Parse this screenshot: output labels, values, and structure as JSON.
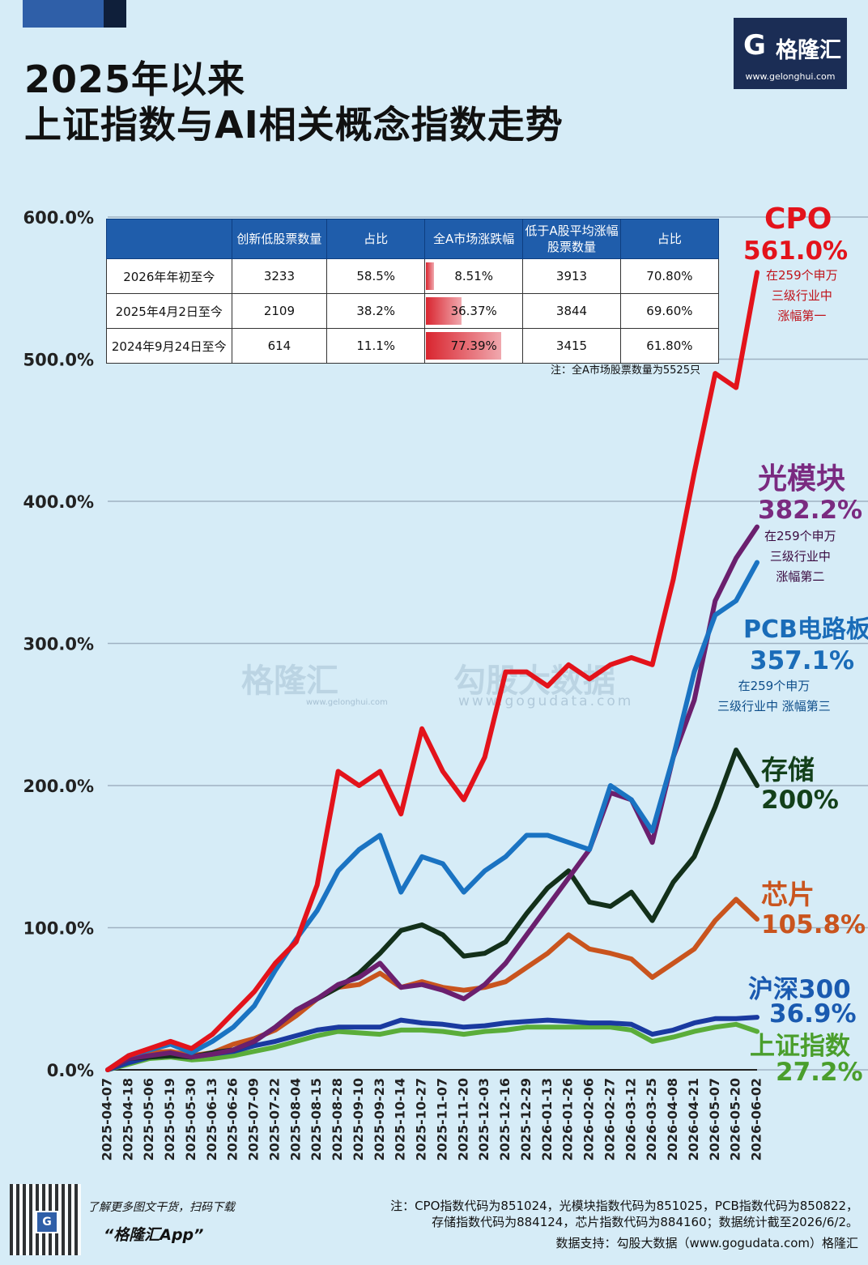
{
  "title": {
    "line1": "2025年以来",
    "line2": "上证指数与AI相关概念指数走势"
  },
  "logo": {
    "mark": "G",
    "name": "格隆汇",
    "url": "www.gelonghui.com"
  },
  "watermark": {
    "brand": "格隆汇",
    "brand_url": "www.gelonghui.com",
    "partner": "勾股大数据",
    "partner_url": "www.gogudata.com"
  },
  "table": {
    "headers": [
      "",
      "创新低股票数量",
      "占比",
      "全A市场涨跌幅",
      "低于A股平均涨幅股票数量",
      "占比"
    ],
    "rows": [
      {
        "period": "2026年年初至今",
        "new_low": "3233",
        "ratio": "58.5%",
        "change": "8.51%",
        "change_value": 8.51,
        "below_avg": "3913",
        "below_ratio": "70.80%"
      },
      {
        "period": "2025年4月2日至今",
        "new_low": "2109",
        "ratio": "38.2%",
        "change": "36.37%",
        "change_value": 36.37,
        "below_avg": "3844",
        "below_ratio": "69.60%"
      },
      {
        "period": "2024年9月24日至今",
        "new_low": "614",
        "ratio": "11.1%",
        "change": "77.39%",
        "change_value": 77.39,
        "below_avg": "3415",
        "below_ratio": "61.80%"
      }
    ],
    "note": "注：全A市场股票数量为5525只"
  },
  "labels": {
    "cpo": {
      "name": "CPO",
      "value": "561.0%",
      "sub": [
        "在259个申万",
        "三级行业中",
        "涨幅第一"
      ]
    },
    "optical": {
      "name": "光模块",
      "value": "382.2%",
      "sub": [
        "在259个申万",
        "三级行业中",
        "涨幅第二"
      ]
    },
    "pcb": {
      "name": "PCB电路板",
      "value": "357.1%",
      "sub": [
        "在259个申万",
        "三级行业中 涨幅第三"
      ]
    },
    "storage": {
      "name": "存储",
      "value": "200%"
    },
    "chip": {
      "name": "芯片",
      "value": "105.8%"
    },
    "hs300": {
      "name": "沪深300",
      "value": "36.9%"
    },
    "sh": {
      "name": "上证指数",
      "value": "27.2%"
    }
  },
  "footer": {
    "promo1": "了解更多图文干货，扫码下载",
    "promo2": "“格隆汇App”",
    "note1": "注：CPO指数代码为851024，光模块指数代码为851025，PCB指数代码为850822，",
    "note2": "存储指数代码为884124，芯片指数代码为884160；数据统计截至2026/6/2。",
    "source": "数据支持：勾股大数据（www.gogudata.com）格隆汇"
  },
  "colors": {
    "cpo": "#e3131b",
    "optical": "#6b1f6e",
    "pcb": "#1a73c2",
    "storage": "#13301a",
    "chip": "#c9541e",
    "hs300": "#1a3aa0",
    "sh": "#5aad3a",
    "header": "#1f5dab"
  },
  "chart_data": {
    "type": "line",
    "ylim": [
      0,
      600
    ],
    "yticks": [
      "600.0%",
      "500.0%",
      "400.0%",
      "300.0%",
      "200.0%",
      "100.0%",
      "0.0%"
    ],
    "ytick_values": [
      600,
      500,
      400,
      300,
      200,
      100,
      0
    ],
    "x": [
      "2025-04-07",
      "2025-04-18",
      "2025-05-06",
      "2025-05-19",
      "2025-05-30",
      "2025-06-13",
      "2025-06-26",
      "2025-07-09",
      "2025-07-22",
      "2025-08-04",
      "2025-08-15",
      "2025-08-28",
      "2025-09-10",
      "2025-09-23",
      "2025-10-14",
      "2025-10-27",
      "2025-11-07",
      "2025-11-20",
      "2025-12-03",
      "2025-12-16",
      "2025-12-29",
      "2026-01-13",
      "2026-01-26",
      "2026-02-06",
      "2026-02-27",
      "2026-03-12",
      "2026-03-25",
      "2026-04-08",
      "2026-04-21",
      "2026-05-07",
      "2026-05-20",
      "2026-06-02"
    ],
    "series": [
      {
        "name": "上证指数",
        "key": "sh",
        "values": [
          0,
          4,
          8,
          9,
          7,
          8,
          10,
          13,
          16,
          20,
          24,
          27,
          26,
          25,
          28,
          28,
          27,
          25,
          27,
          28,
          30,
          30,
          30,
          30,
          30,
          28,
          20,
          23,
          27,
          30,
          32,
          27
        ]
      },
      {
        "name": "沪深300",
        "key": "hs300",
        "values": [
          0,
          5,
          9,
          10,
          9,
          11,
          13,
          17,
          20,
          24,
          28,
          30,
          30,
          30,
          35,
          33,
          32,
          30,
          31,
          33,
          34,
          35,
          34,
          33,
          33,
          32,
          25,
          28,
          33,
          36,
          36,
          37
        ]
      },
      {
        "name": "芯片",
        "key": "chip",
        "values": [
          0,
          8,
          12,
          13,
          10,
          12,
          18,
          22,
          28,
          38,
          50,
          58,
          60,
          68,
          58,
          62,
          58,
          56,
          58,
          62,
          72,
          82,
          95,
          85,
          82,
          78,
          65,
          75,
          85,
          105,
          120,
          106
        ]
      },
      {
        "name": "存储",
        "key": "storage",
        "values": [
          0,
          8,
          9,
          10,
          9,
          12,
          14,
          20,
          30,
          42,
          50,
          58,
          68,
          82,
          98,
          102,
          95,
          80,
          82,
          90,
          110,
          128,
          140,
          118,
          115,
          125,
          105,
          132,
          150,
          185,
          225,
          200
        ]
      },
      {
        "name": "光模块",
        "key": "optical",
        "values": [
          0,
          8,
          10,
          12,
          9,
          11,
          14,
          20,
          30,
          42,
          50,
          60,
          65,
          75,
          58,
          60,
          56,
          50,
          60,
          75,
          95,
          115,
          135,
          155,
          195,
          190,
          160,
          220,
          260,
          330,
          360,
          382
        ]
      },
      {
        "name": "PCB电路板",
        "key": "pcb",
        "values": [
          0,
          10,
          14,
          18,
          12,
          20,
          30,
          45,
          70,
          92,
          112,
          140,
          155,
          165,
          125,
          150,
          145,
          125,
          140,
          150,
          165,
          165,
          160,
          155,
          200,
          190,
          168,
          220,
          280,
          320,
          330,
          357
        ]
      },
      {
        "name": "CPO",
        "key": "cpo",
        "values": [
          0,
          10,
          15,
          20,
          15,
          25,
          40,
          55,
          75,
          90,
          130,
          210,
          200,
          210,
          180,
          240,
          210,
          190,
          220,
          280,
          280,
          270,
          285,
          275,
          285,
          290,
          285,
          345,
          420,
          490,
          480,
          561
        ]
      }
    ]
  }
}
